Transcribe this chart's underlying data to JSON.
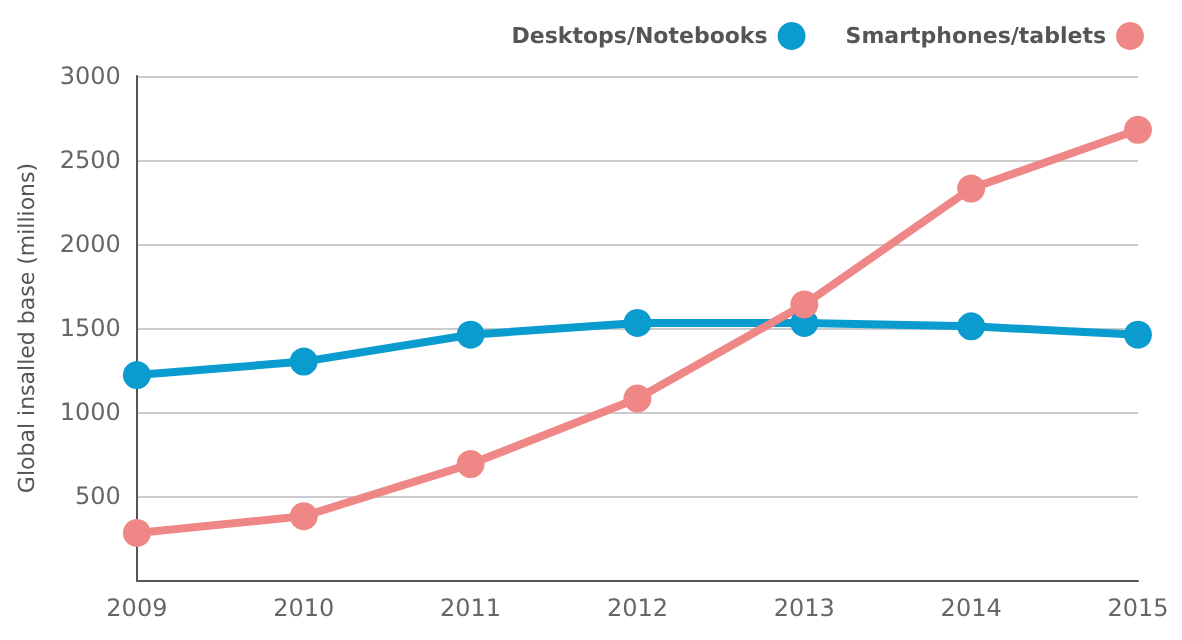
{
  "chart_data": {
    "type": "line",
    "ylabel": "Global insalled base (millions)",
    "categories": [
      "2009",
      "2010",
      "2011",
      "2012",
      "2013",
      "2014",
      "2015"
    ],
    "series": [
      {
        "name": "Desktops/Notebooks",
        "color": "#0a9ccf",
        "values": [
          1220,
          1300,
          1460,
          1530,
          1530,
          1510,
          1460
        ]
      },
      {
        "name": "Smartphones/tablets",
        "color": "#ee8785",
        "values": [
          280,
          380,
          690,
          1080,
          1640,
          2330,
          2680
        ]
      }
    ],
    "ylim": [
      0,
      3000
    ],
    "yticks": [
      500,
      1000,
      1500,
      2000,
      2500,
      3000
    ],
    "grid": "y",
    "legend": "top right",
    "marker": "circle",
    "line_style": "solid"
  }
}
